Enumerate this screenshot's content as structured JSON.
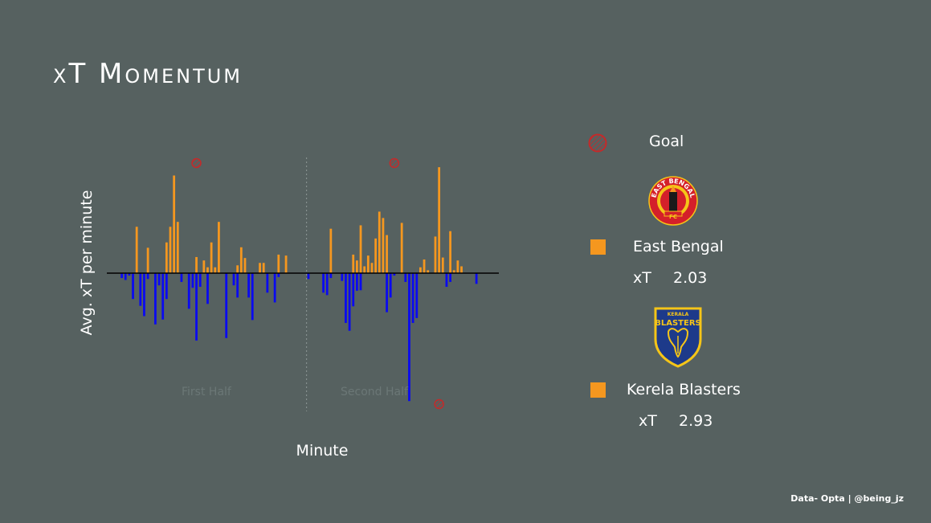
{
  "title": "xT Momentum",
  "footer": "Data- Opta | @being_jz",
  "colors": {
    "background": "#566160",
    "east_bengal": "#f5971f",
    "kerala_blasters": "#0a0af0",
    "goal": "#c42a2a",
    "halftime_line": "#8e9897"
  },
  "legend": {
    "goal_label": "Goal",
    "goal_icon": "hatched-circle-icon"
  },
  "teams": [
    {
      "name": "East Bengal",
      "xt_label": "xT",
      "xt_value": "2.03",
      "logo_text": [
        "EAST BENGAL",
        "FC"
      ],
      "logo_icon": "east-bengal-torch-crest"
    },
    {
      "name": "Kerela Blasters",
      "xt_label": "xT",
      "xt_value": "2.93",
      "logo_text": [
        "KERALA",
        "BLASTERS"
      ],
      "logo_icon": "kerala-blasters-elephant-shield"
    }
  ],
  "chart_data": {
    "type": "bar",
    "xlabel": "Minute",
    "ylabel": "Avg. xT per minute",
    "half_labels": [
      "First Half",
      "Second Half"
    ],
    "halftime_minute": 50,
    "xlim": [
      -4,
      101
    ],
    "ylim": [
      -0.27,
      0.25
    ],
    "x": [
      0,
      1,
      2,
      3,
      4,
      5,
      6,
      7,
      8,
      9,
      10,
      11,
      12,
      13,
      14,
      15,
      16,
      17,
      18,
      19,
      20,
      21,
      22,
      23,
      24,
      25,
      26,
      27,
      28,
      29,
      30,
      31,
      32,
      33,
      34,
      35,
      36,
      37,
      38,
      39,
      40,
      41,
      42,
      43,
      44,
      45,
      46,
      47,
      48,
      49,
      50,
      51,
      52,
      53,
      54,
      55,
      56,
      57,
      58,
      59,
      60,
      61,
      62,
      63,
      64,
      65,
      66,
      67,
      68,
      69,
      70,
      71,
      72,
      73,
      74,
      75,
      76,
      77,
      78,
      79,
      80,
      81,
      82,
      83,
      84,
      85,
      86,
      87,
      88,
      89,
      90,
      91,
      92,
      93,
      94,
      95,
      96
    ],
    "series": [
      {
        "team": "East Bengal",
        "color": "#f5971f",
        "values": [
          0,
          0,
          0,
          0,
          0.095,
          0,
          0,
          0.052,
          0,
          0,
          0,
          0,
          0.063,
          0.095,
          0.2,
          0.105,
          0,
          0,
          0,
          0,
          0.033,
          0,
          0.026,
          0.012,
          0.063,
          0.012,
          0.105,
          0,
          0,
          0,
          0,
          0.016,
          0.053,
          0.031,
          0,
          0,
          0,
          0.021,
          0.021,
          0,
          0,
          0,
          0.038,
          0,
          0.036,
          0,
          0,
          0,
          0,
          0,
          0,
          0,
          0,
          0,
          0,
          0,
          0.091,
          0,
          0,
          0,
          0,
          0,
          0.038,
          0.026,
          0.098,
          0.014,
          0.036,
          0.021,
          0.071,
          0.126,
          0.113,
          0.078,
          0,
          0,
          0,
          0.103,
          0,
          0,
          0,
          0,
          0.012,
          0.028,
          0.006,
          0,
          0.075,
          0.217,
          0.032,
          0,
          0.086,
          0.006,
          0.026,
          0.014,
          0,
          0,
          0,
          0,
          0
        ]
      },
      {
        "team": "Kerela Blasters",
        "color": "#0a0af0",
        "values": [
          -0.01,
          -0.014,
          -0.005,
          -0.053,
          0,
          -0.067,
          -0.088,
          -0.012,
          0,
          -0.105,
          -0.025,
          -0.095,
          -0.053,
          0,
          0,
          0,
          -0.018,
          0,
          -0.073,
          -0.03,
          -0.138,
          -0.028,
          0,
          -0.063,
          0,
          0,
          0,
          0,
          -0.133,
          0,
          -0.025,
          -0.05,
          0,
          0,
          -0.05,
          -0.096,
          0,
          0,
          0,
          -0.04,
          0,
          -0.06,
          -0.008,
          0,
          0,
          0,
          0,
          0,
          0,
          0,
          -0.012,
          0,
          0,
          0,
          -0.04,
          -0.045,
          -0.01,
          0,
          0,
          -0.016,
          -0.102,
          -0.118,
          -0.068,
          -0.036,
          -0.035,
          0,
          0,
          0,
          0,
          0,
          0,
          -0.08,
          -0.05,
          -0.005,
          0,
          0,
          -0.018,
          -0.262,
          -0.102,
          -0.092,
          0,
          0,
          0,
          0,
          0,
          0,
          0,
          -0.028,
          -0.018,
          0,
          0,
          0,
          0,
          0,
          0,
          -0.022,
          0
        ]
      }
    ],
    "goals": [
      {
        "minute": 20,
        "team": "East Bengal"
      },
      {
        "minute": 73,
        "team": "East Bengal"
      },
      {
        "minute": 85,
        "team": "Kerela Blasters"
      }
    ]
  }
}
